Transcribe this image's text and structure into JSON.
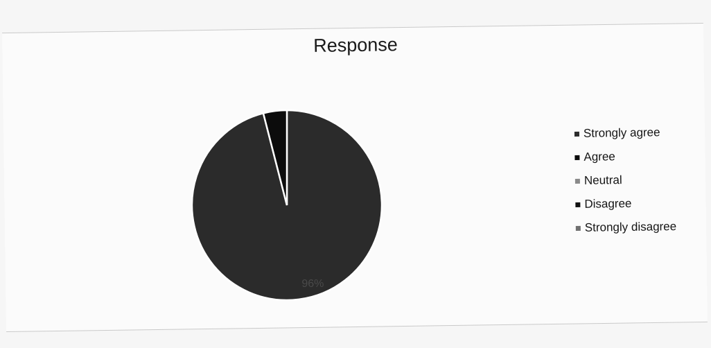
{
  "chart_data": {
    "type": "pie",
    "title": "Response",
    "categories": [
      "Strongly agree",
      "Agree",
      "Neutral",
      "Disagree",
      "Strongly disagree"
    ],
    "values": [
      96,
      4,
      0,
      0,
      0
    ],
    "slice_labels": [
      "96%",
      "",
      "",
      "",
      ""
    ],
    "colors": [
      "#2b2b2b",
      "#0c0c0c",
      "#8a8a8a",
      "#111111",
      "#707070"
    ],
    "legend_position": "right"
  }
}
